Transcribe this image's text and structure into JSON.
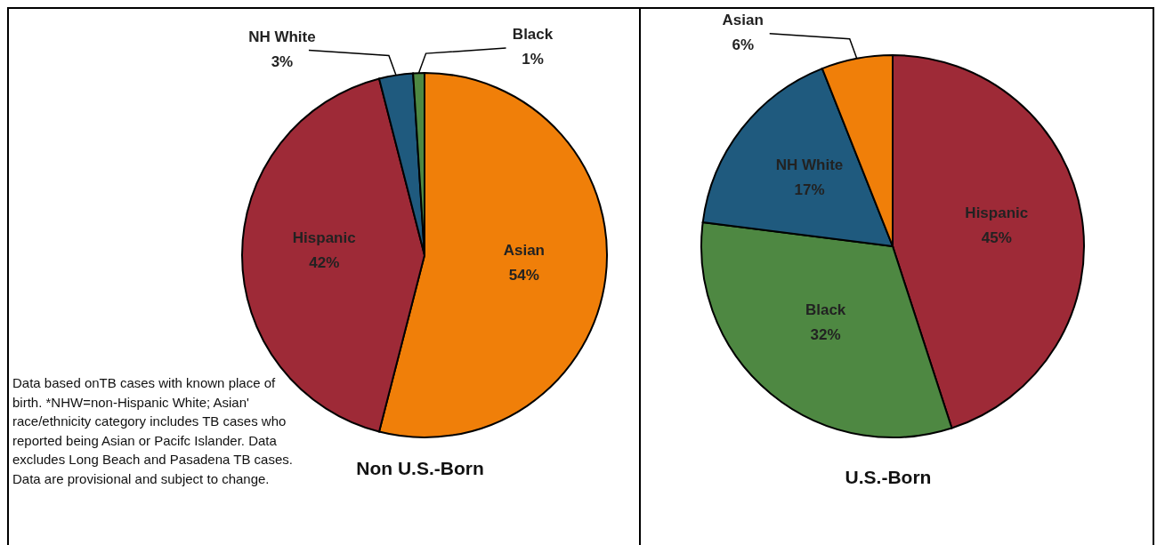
{
  "chart_data": [
    {
      "type": "pie",
      "title": "Non U.S.-Born",
      "categories": [
        "Asian",
        "Hispanic",
        "NH White",
        "Black"
      ],
      "values": [
        54,
        42,
        3,
        1
      ],
      "value_labels": [
        "54%",
        "42%",
        "3%",
        "1%"
      ],
      "colors": [
        "#f07f09",
        "#9e2a37",
        "#1f5a7e",
        "#4e8842"
      ],
      "annotations": [
        "Data based onTB cases with known place of birth. *NHW=non-Hispanic White; Asian' race/ethnicity category includes TB cases who reported being Asian or Pacifc Islander. Data excludes Long Beach and Pasadena TB cases. Data are provisional and subject to change."
      ]
    },
    {
      "type": "pie",
      "title": "U.S.-Born",
      "categories": [
        "Hispanic",
        "Black",
        "NH White",
        "Asian"
      ],
      "values": [
        45,
        32,
        17,
        6
      ],
      "value_labels": [
        "45%",
        "32%",
        "17%",
        "6%"
      ],
      "colors": [
        "#9e2a37",
        "#4e8842",
        "#1f5a7e",
        "#f07f09"
      ]
    }
  ]
}
